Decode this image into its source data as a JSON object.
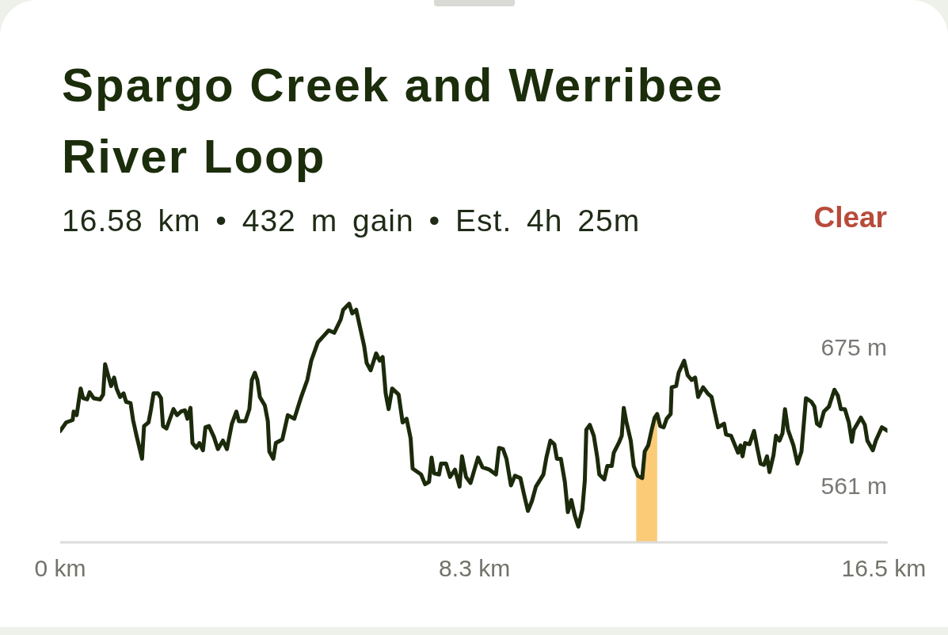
{
  "chart_data": {
    "type": "line",
    "title": "Spargo Creek and Werribee River Loop",
    "subtitle": "16.58 km • 432 m gain • Est. 4h 25m",
    "annotations": [
      "Clear"
    ],
    "xlim": [
      0,
      16.58
    ],
    "xticks": [
      {
        "value": 0,
        "label": "0 km"
      },
      {
        "value": 8.3,
        "label": "8.3 km"
      },
      {
        "value": 16.5,
        "label": "16.5 km"
      }
    ],
    "ylim": [
      514,
      714
    ],
    "yticks": [
      {
        "value": 561,
        "label": "561 m"
      },
      {
        "value": 675,
        "label": "675 m"
      }
    ],
    "series": [
      {
        "color": "#1c2a0c",
        "x": [
          0,
          0.12,
          0.25,
          0.27,
          0.33,
          0.41,
          0.46,
          0.54,
          0.59,
          0.67,
          0.8,
          0.86,
          0.9,
          0.96,
          1.02,
          1.08,
          1.13,
          1.2,
          1.27,
          1.32,
          1.41,
          1.46,
          1.53,
          1.64,
          1.68,
          1.77,
          1.82,
          1.87,
          1.96,
          2.02,
          2.06,
          2.13,
          2.19,
          2.27,
          2.34,
          2.42,
          2.5,
          2.55,
          2.61,
          2.65,
          2.73,
          2.79,
          2.86,
          2.91,
          2.98,
          3.08,
          3.16,
          3.26,
          3.34,
          3.44,
          3.53,
          3.58,
          3.71,
          3.79,
          3.84,
          3.9,
          3.95,
          4.0,
          4.1,
          4.16,
          4.19,
          4.27,
          4.32,
          4.45,
          4.56,
          4.69,
          4.82,
          4.95,
          5.03,
          5.16,
          5.27,
          5.38,
          5.49,
          5.62,
          5.67,
          5.79,
          5.85,
          5.93,
          6.01,
          6.09,
          6.14,
          6.22,
          6.33,
          6.4,
          6.46,
          6.52,
          6.58,
          6.65,
          6.78,
          6.86,
          6.94,
          7.02,
          7.06,
          7.23,
          7.31,
          7.39,
          7.44,
          7.49,
          7.59,
          7.63,
          7.73,
          7.81,
          7.91,
          8.0,
          8.05,
          8.13,
          8.22,
          8.37,
          8.46,
          8.6,
          8.73,
          8.79,
          8.87,
          8.94,
          9.03,
          9.11,
          9.22,
          9.29,
          9.37,
          9.45,
          9.53,
          9.68,
          9.74,
          9.82,
          9.9,
          9.95,
          10.03,
          10.11,
          10.17,
          10.24,
          10.31,
          10.38,
          10.46,
          10.51,
          10.54,
          10.61,
          10.69,
          10.76,
          10.8,
          10.9,
          10.96,
          11.05,
          11.09,
          11.2,
          11.25,
          11.29,
          11.34,
          11.43,
          11.49,
          11.57,
          11.66,
          11.71,
          11.78,
          11.85,
          11.91,
          11.96,
          12.02,
          12.09,
          12.15,
          12.23,
          12.25,
          12.34,
          12.39,
          12.5,
          12.57,
          12.65,
          12.72,
          12.78,
          12.88,
          12.97,
          13.05,
          13.1,
          13.18,
          13.3,
          13.34,
          13.44,
          13.52,
          13.58,
          13.63,
          13.67,
          13.72,
          13.81,
          13.9,
          13.97,
          14.03,
          14.1,
          14.16,
          14.21,
          14.29,
          14.34,
          14.41,
          14.47,
          14.52,
          14.58,
          14.69,
          14.77,
          14.85,
          14.94,
          15.05,
          15.11,
          15.16,
          15.22,
          15.3,
          15.4,
          15.51,
          15.58,
          15.64,
          15.72,
          15.8,
          15.86,
          15.9,
          16.04,
          16.12,
          16.17,
          16.28,
          16.34,
          16.46,
          16.58
        ],
        "values": [
          606,
          613,
          615,
          622,
          619,
          641,
          633,
          632,
          638,
          633,
          632,
          636,
          661,
          652,
          643,
          650,
          641,
          634,
          637,
          630,
          629,
          615,
          602,
          583,
          610,
          613,
          624,
          637,
          637,
          633,
          610,
          608,
          615,
          624,
          619,
          622,
          623,
          616,
          625,
          596,
          592,
          596,
          590,
          609,
          610,
          601,
          591,
          598,
          591,
          612,
          622,
          614,
          614,
          624,
          648,
          654,
          648,
          634,
          627,
          614,
          589,
          583,
          596,
          599,
          619,
          616,
          633,
          648,
          664,
          679,
          684,
          689,
          687,
          698,
          706,
          711,
          703,
          706,
          691,
          676,
          662,
          656,
          670,
          664,
          667,
          637,
          624,
          641,
          636,
          613,
          616,
          600,
          575,
          570,
          562,
          564,
          584,
          571,
          570,
          579,
          579,
          568,
          574,
          560,
          585,
          568,
          563,
          584,
          576,
          574,
          570,
          592,
          591,
          583,
          561,
          569,
          567,
          554,
          540,
          548,
          560,
          570,
          584,
          598,
          595,
          583,
          583,
          564,
          539,
          549,
          536,
          527,
          541,
          565,
          607,
          611,
          602,
          584,
          570,
          566,
          577,
          577,
          588,
          597,
          602,
          625,
          614,
          598,
          577,
          569,
          567,
          589,
          594,
          607,
          617,
          620,
          610,
          609,
          616,
          620,
          642,
          643,
          654,
          664,
          652,
          648,
          650,
          634,
          642,
          637,
          634,
          624,
          609,
          612,
          603,
          602,
          594,
          588,
          594,
          585,
          596,
          595,
          606,
          591,
          579,
          578,
          585,
          572,
          586,
          602,
          598,
          604,
          624,
          607,
          594,
          579,
          589,
          633,
          630,
          626,
          612,
          610,
          622,
          626,
          640,
          635,
          624,
          624,
          613,
          597,
          607,
          617,
          611,
          598,
          590,
          598,
          609,
          606
        ]
      },
      {
        "type": "area",
        "color": "#fccb78",
        "x": [
          11.54,
          11.57,
          11.66,
          11.71,
          11.78,
          11.85,
          11.91,
          11.96
        ],
        "values": [
          572,
          569,
          567,
          589,
          594,
          607,
          617,
          620
        ]
      }
    ]
  }
}
